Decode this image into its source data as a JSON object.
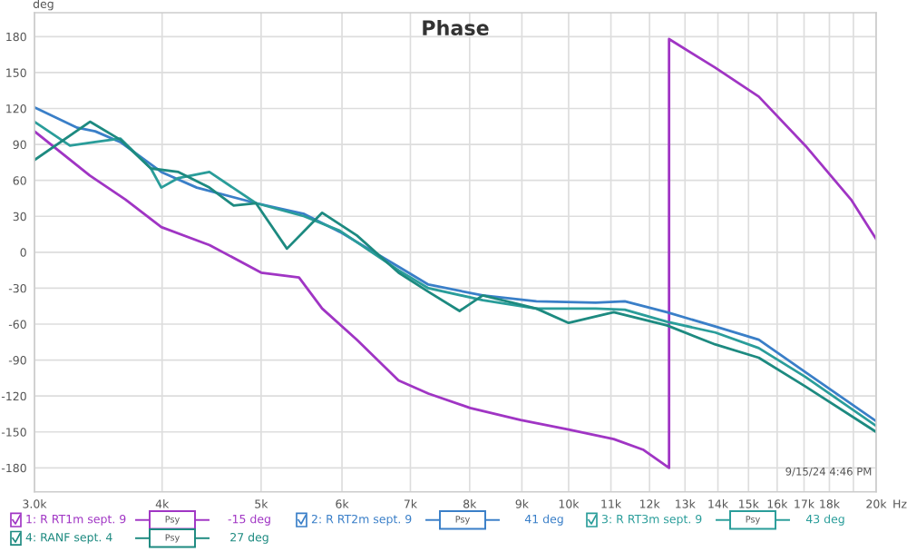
{
  "chart_data": {
    "type": "line",
    "title": "Phase",
    "ylabel": "deg",
    "xlabel": "Hz",
    "log": "x",
    "xlim": [
      3000,
      20000
    ],
    "ylim": [
      -200,
      200
    ],
    "xticks": [
      {
        "value": 3000,
        "label": "3.0k"
      },
      {
        "value": 4000,
        "label": "4k"
      },
      {
        "value": 5000,
        "label": "5k"
      },
      {
        "value": 6000,
        "label": "6k"
      },
      {
        "value": 7000,
        "label": "7k"
      },
      {
        "value": 8000,
        "label": "8k"
      },
      {
        "value": 9000,
        "label": "9k"
      },
      {
        "value": 10000,
        "label": "10k"
      },
      {
        "value": 11000,
        "label": "11k"
      },
      {
        "value": 12000,
        "label": "12k"
      },
      {
        "value": 13000,
        "label": "13k"
      },
      {
        "value": 14000,
        "label": "14k"
      },
      {
        "value": 15000,
        "label": "15k"
      },
      {
        "value": 16000,
        "label": "16k"
      },
      {
        "value": 17000,
        "label": "17k"
      },
      {
        "value": 18000,
        "label": "18k"
      },
      {
        "value": 19000,
        "label": null
      },
      {
        "value": 20000,
        "label": "20k"
      }
    ],
    "yticks": [
      -180,
      -150,
      -120,
      -90,
      -60,
      -30,
      0,
      30,
      60,
      90,
      120,
      150,
      180
    ],
    "grid": true,
    "legend": "bottom",
    "marker": "none",
    "series": [
      {
        "name": "1: R RT1m sept. 9",
        "color": "#a035c4",
        "x": [
          3000,
          3399,
          3684,
          3993,
          4452,
          5000,
          5446,
          5738,
          6205,
          6815,
          7290,
          8010,
          8975,
          10000,
          11070,
          11840,
          12540,
          12540,
          13920,
          15350,
          17050,
          18900,
          20000
        ],
        "values": [
          101,
          64,
          44,
          21,
          6,
          -17,
          -21,
          -47,
          -73,
          -107,
          -118,
          -130,
          -140,
          -148,
          -156,
          -165,
          -180,
          178,
          154,
          130,
          89,
          44,
          11
        ]
      },
      {
        "name": "2: R RT2m sept. 9",
        "color": "#3a7fc8",
        "x": [
          3000,
          3304,
          3440,
          3640,
          3993,
          4325,
          4942,
          5510,
          5970,
          6815,
          7290,
          8240,
          9300,
          10630,
          11350,
          12480,
          13920,
          15350,
          17050,
          20000
        ],
        "values": [
          121,
          104,
          101,
          92,
          67,
          54,
          41,
          32,
          17,
          -12,
          -27,
          -36,
          -41,
          -42,
          -41,
          -50,
          -62,
          -73,
          -100,
          -141
        ]
      },
      {
        "name": "3: R RT3m sept. 9",
        "color": "#2a9d9a",
        "x": [
          3000,
          3250,
          3440,
          3640,
          3900,
          3993,
          4150,
          4450,
          4942,
          5510,
          5970,
          6815,
          7290,
          8240,
          9300,
          10630,
          11350,
          12480,
          13920,
          15350,
          17050,
          20000
        ],
        "values": [
          109,
          89,
          92,
          95,
          70,
          54,
          62,
          67,
          41,
          30,
          18,
          -15,
          -30,
          -40,
          -47,
          -47,
          -48,
          -58,
          -67,
          -80,
          -104,
          -145
        ]
      },
      {
        "name": "4: RANF sept. 4",
        "color": "#1d8a80",
        "x": [
          3000,
          3400,
          3640,
          3900,
          4150,
          4450,
          4700,
          4942,
          5300,
          5738,
          6205,
          6815,
          7290,
          7820,
          8240,
          9300,
          10000,
          11070,
          12480,
          13920,
          15350,
          17050,
          20000
        ],
        "values": [
          77,
          109,
          94,
          70,
          67,
          54,
          39,
          41,
          3,
          33,
          14,
          -17,
          -33,
          -49,
          -36,
          -47,
          -59,
          -50,
          -61,
          -77,
          -88,
          -112,
          -150
        ]
      }
    ],
    "annotations": [
      "9/15/24 4:46 PM",
      "Psy",
      "-15 deg",
      "41 deg",
      "43 deg",
      "27 deg"
    ]
  }
}
